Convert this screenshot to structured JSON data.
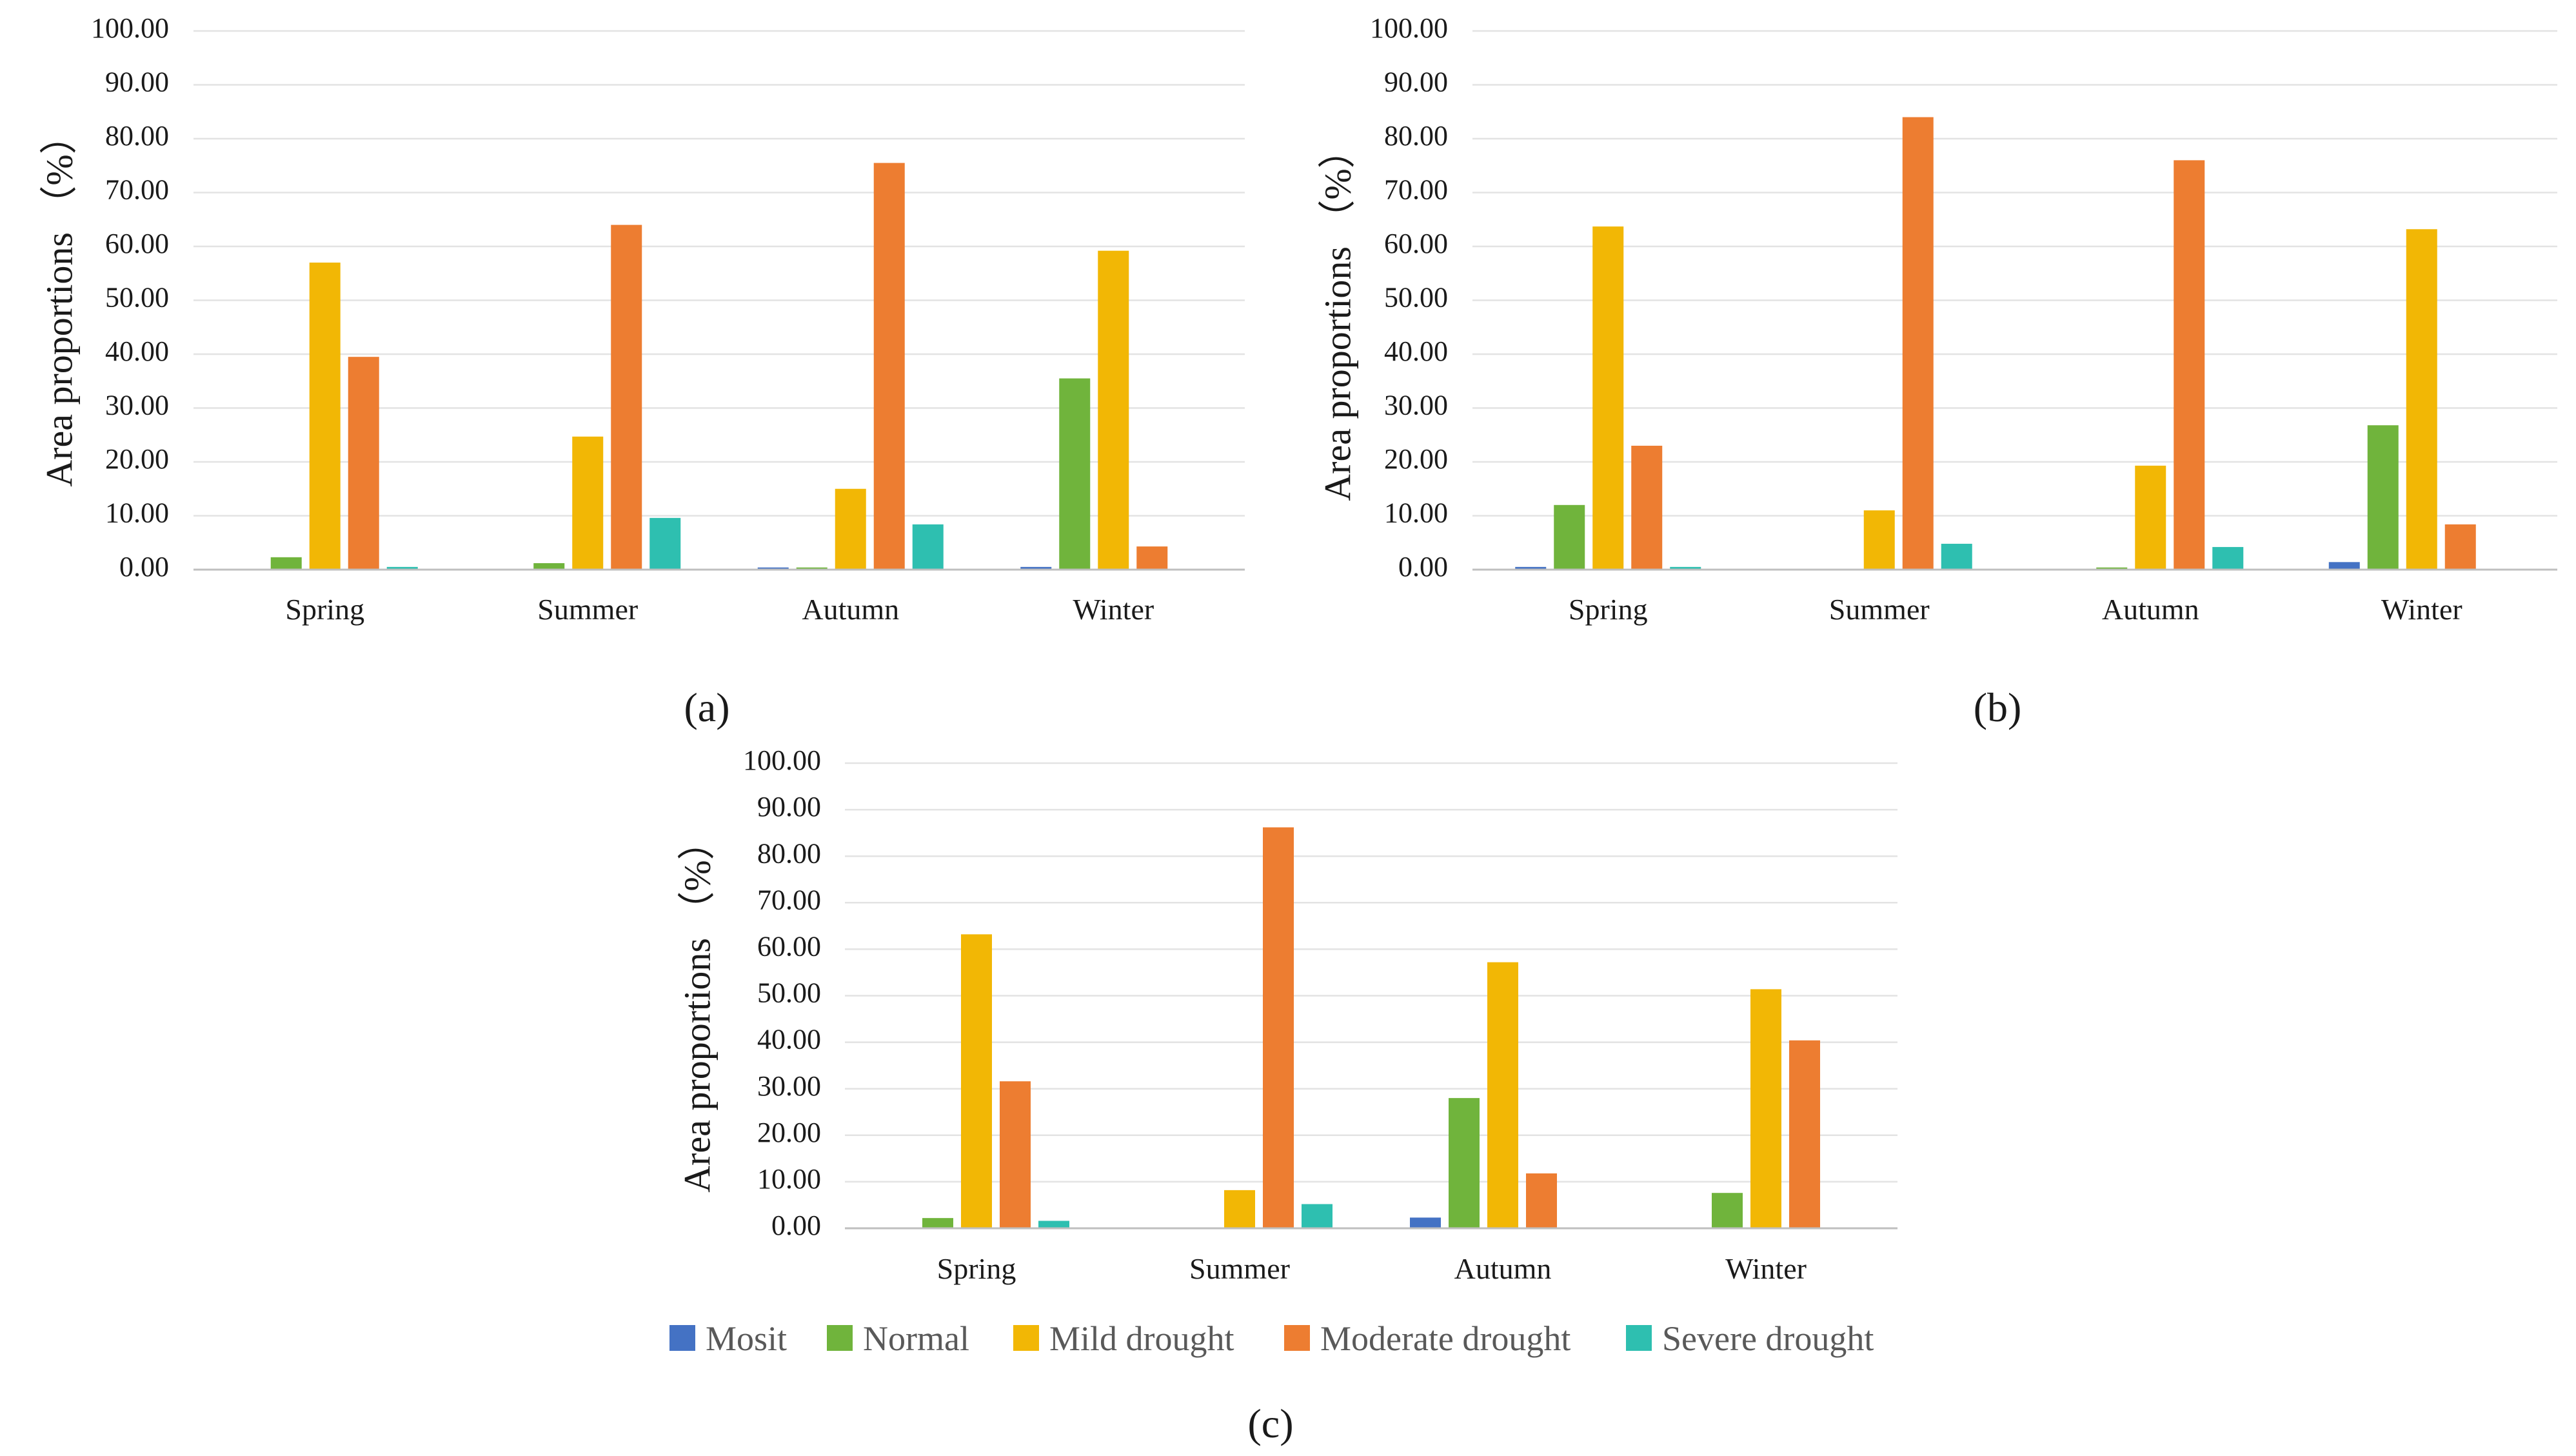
{
  "colors": {
    "Mosit": "#4472C4",
    "Normal": "#70B43C",
    "Mild drought": "#F2B705",
    "Moderate drought": "#ED7D31",
    "Severe drought": "#2EBFB0"
  },
  "legend": {
    "items": [
      "Mosit",
      "Normal",
      "Mild drought",
      "Moderate drought",
      "Severe drought"
    ]
  },
  "chart_data": [
    {
      "type": "bar",
      "panel_label": "(a)",
      "ylabel": "Area proportions （%）",
      "ylim": [
        0,
        100
      ],
      "yticks": [
        "0.00",
        "10.00",
        "20.00",
        "30.00",
        "40.00",
        "50.00",
        "60.00",
        "70.00",
        "80.00",
        "90.00",
        "100.00"
      ],
      "categories": [
        "Spring",
        "Summer",
        "Autumn",
        "Winter"
      ],
      "series": [
        {
          "name": "Mosit",
          "values": [
            0.0,
            0.0,
            0.4,
            0.5
          ]
        },
        {
          "name": "Normal",
          "values": [
            2.3,
            1.2,
            0.4,
            35.5
          ]
        },
        {
          "name": "Mild drought",
          "values": [
            57.0,
            24.7,
            15.0,
            59.2
          ]
        },
        {
          "name": "Moderate drought",
          "values": [
            39.5,
            64.0,
            75.5,
            4.3
          ]
        },
        {
          "name": "Severe drought",
          "values": [
            0.5,
            9.6,
            8.4,
            0.0
          ]
        }
      ]
    },
    {
      "type": "bar",
      "panel_label": "(b)",
      "ylabel": "Area proportions （%）",
      "ylim": [
        0,
        100
      ],
      "yticks": [
        "0.00",
        "10.00",
        "20.00",
        "30.00",
        "40.00",
        "50.00",
        "60.00",
        "70.00",
        "80.00",
        "90.00",
        "100.00"
      ],
      "categories": [
        "Spring",
        "Summer",
        "Autumn",
        "Winter"
      ],
      "series": [
        {
          "name": "Mosit",
          "values": [
            0.5,
            0.0,
            0.0,
            1.4
          ]
        },
        {
          "name": "Normal",
          "values": [
            12.0,
            0.0,
            0.4,
            26.8
          ]
        },
        {
          "name": "Mild drought",
          "values": [
            63.7,
            11.0,
            19.3,
            63.2
          ]
        },
        {
          "name": "Moderate drought",
          "values": [
            23.0,
            84.0,
            76.0,
            8.4
          ]
        },
        {
          "name": "Severe drought",
          "values": [
            0.5,
            4.8,
            4.2,
            0.0
          ]
        }
      ]
    },
    {
      "type": "bar",
      "panel_label": "(c)",
      "ylabel": "Area proportions （%）",
      "ylim": [
        0,
        100
      ],
      "yticks": [
        "0.00",
        "10.00",
        "20.00",
        "30.00",
        "40.00",
        "50.00",
        "60.00",
        "70.00",
        "80.00",
        "90.00",
        "100.00"
      ],
      "categories": [
        "Spring",
        "Summer",
        "Autumn",
        "Winter"
      ],
      "series": [
        {
          "name": "Mosit",
          "values": [
            0.0,
            0.0,
            2.3,
            0.0
          ]
        },
        {
          "name": "Normal",
          "values": [
            2.2,
            0.0,
            28.0,
            7.6
          ]
        },
        {
          "name": "Mild drought",
          "values": [
            63.2,
            8.2,
            57.2,
            51.4
          ]
        },
        {
          "name": "Moderate drought",
          "values": [
            31.6,
            86.2,
            11.8,
            40.4
          ]
        },
        {
          "name": "Severe drought",
          "values": [
            1.6,
            5.2,
            0.0,
            0.0
          ]
        }
      ]
    }
  ]
}
